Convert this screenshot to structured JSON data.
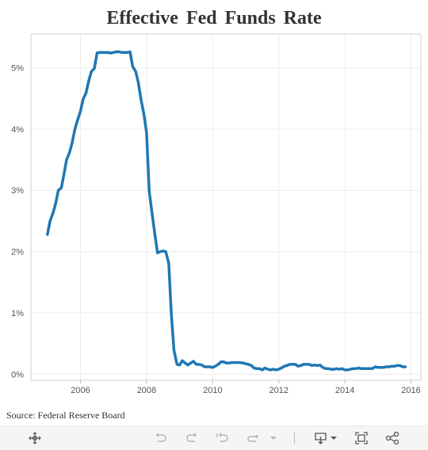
{
  "chart_data": {
    "type": "line",
    "title": "Effective Fed Funds Rate",
    "xlabel": "",
    "ylabel": "",
    "x_ticks": [
      "2006",
      "2008",
      "2010",
      "2012",
      "2014",
      "2016"
    ],
    "y_ticks": [
      "0%",
      "1%",
      "2%",
      "3%",
      "4%",
      "5%"
    ],
    "xlim": [
      2004.5,
      2016.3
    ],
    "ylim": [
      -0.1,
      5.55
    ],
    "grid": true,
    "series": [
      {
        "color": "#1f77b4",
        "x": [
          2005.0,
          2005.08,
          2005.17,
          2005.25,
          2005.33,
          2005.42,
          2005.5,
          2005.58,
          2005.67,
          2005.75,
          2005.83,
          2005.92,
          2006.0,
          2006.08,
          2006.17,
          2006.25,
          2006.33,
          2006.42,
          2006.5,
          2006.58,
          2006.67,
          2006.75,
          2006.83,
          2006.92,
          2007.0,
          2007.08,
          2007.17,
          2007.25,
          2007.33,
          2007.42,
          2007.5,
          2007.58,
          2007.67,
          2007.75,
          2007.83,
          2007.92,
          2008.0,
          2008.08,
          2008.17,
          2008.25,
          2008.33,
          2008.42,
          2008.5,
          2008.58,
          2008.67,
          2008.75,
          2008.83,
          2008.92,
          2009.0,
          2009.08,
          2009.17,
          2009.25,
          2009.33,
          2009.42,
          2009.5,
          2009.58,
          2009.67,
          2009.75,
          2009.83,
          2009.92,
          2010.0,
          2010.08,
          2010.17,
          2010.25,
          2010.33,
          2010.42,
          2010.5,
          2010.58,
          2010.67,
          2010.75,
          2010.83,
          2010.92,
          2011.0,
          2011.08,
          2011.17,
          2011.25,
          2011.33,
          2011.42,
          2011.5,
          2011.58,
          2011.67,
          2011.75,
          2011.83,
          2011.92,
          2012.0,
          2012.08,
          2012.17,
          2012.25,
          2012.33,
          2012.42,
          2012.5,
          2012.58,
          2012.67,
          2012.75,
          2012.83,
          2012.92,
          2013.0,
          2013.08,
          2013.17,
          2013.25,
          2013.33,
          2013.42,
          2013.5,
          2013.58,
          2013.67,
          2013.75,
          2013.83,
          2013.92,
          2014.0,
          2014.08,
          2014.17,
          2014.25,
          2014.33,
          2014.42,
          2014.5,
          2014.58,
          2014.67,
          2014.75,
          2014.83,
          2014.92,
          2015.0,
          2015.08,
          2015.17,
          2015.25,
          2015.33,
          2015.42,
          2015.5,
          2015.58,
          2015.67,
          2015.75,
          2015.83
        ],
        "values": [
          2.28,
          2.5,
          2.63,
          2.79,
          3.0,
          3.04,
          3.26,
          3.5,
          3.62,
          3.78,
          4.0,
          4.16,
          4.29,
          4.49,
          4.59,
          4.79,
          4.94,
          4.99,
          5.24,
          5.25,
          5.25,
          5.25,
          5.25,
          5.24,
          5.25,
          5.26,
          5.26,
          5.25,
          5.25,
          5.25,
          5.26,
          5.02,
          4.94,
          4.76,
          4.49,
          4.24,
          3.94,
          2.98,
          2.61,
          2.28,
          1.98,
          2.0,
          2.01,
          2.0,
          1.81,
          0.97,
          0.39,
          0.16,
          0.15,
          0.22,
          0.18,
          0.15,
          0.18,
          0.21,
          0.16,
          0.16,
          0.15,
          0.12,
          0.12,
          0.12,
          0.11,
          0.13,
          0.16,
          0.2,
          0.2,
          0.18,
          0.18,
          0.19,
          0.19,
          0.19,
          0.19,
          0.18,
          0.17,
          0.16,
          0.14,
          0.1,
          0.09,
          0.09,
          0.07,
          0.1,
          0.08,
          0.07,
          0.08,
          0.07,
          0.08,
          0.1,
          0.13,
          0.14,
          0.16,
          0.16,
          0.16,
          0.13,
          0.14,
          0.16,
          0.16,
          0.16,
          0.14,
          0.15,
          0.14,
          0.15,
          0.11,
          0.09,
          0.09,
          0.08,
          0.08,
          0.09,
          0.08,
          0.09,
          0.07,
          0.07,
          0.08,
          0.09,
          0.09,
          0.1,
          0.09,
          0.09,
          0.09,
          0.09,
          0.09,
          0.12,
          0.11,
          0.11,
          0.11,
          0.12,
          0.12,
          0.13,
          0.13,
          0.14,
          0.14,
          0.12,
          0.12
        ]
      }
    ]
  },
  "source": "Source: Federal Reserve Board",
  "toolbar": {
    "icons": [
      "move-icon",
      "undo-icon",
      "redo-icon",
      "revert-icon",
      "refresh-icon",
      "dropdown-icon",
      "download-icon",
      "fullscreen-icon",
      "share-icon"
    ]
  }
}
